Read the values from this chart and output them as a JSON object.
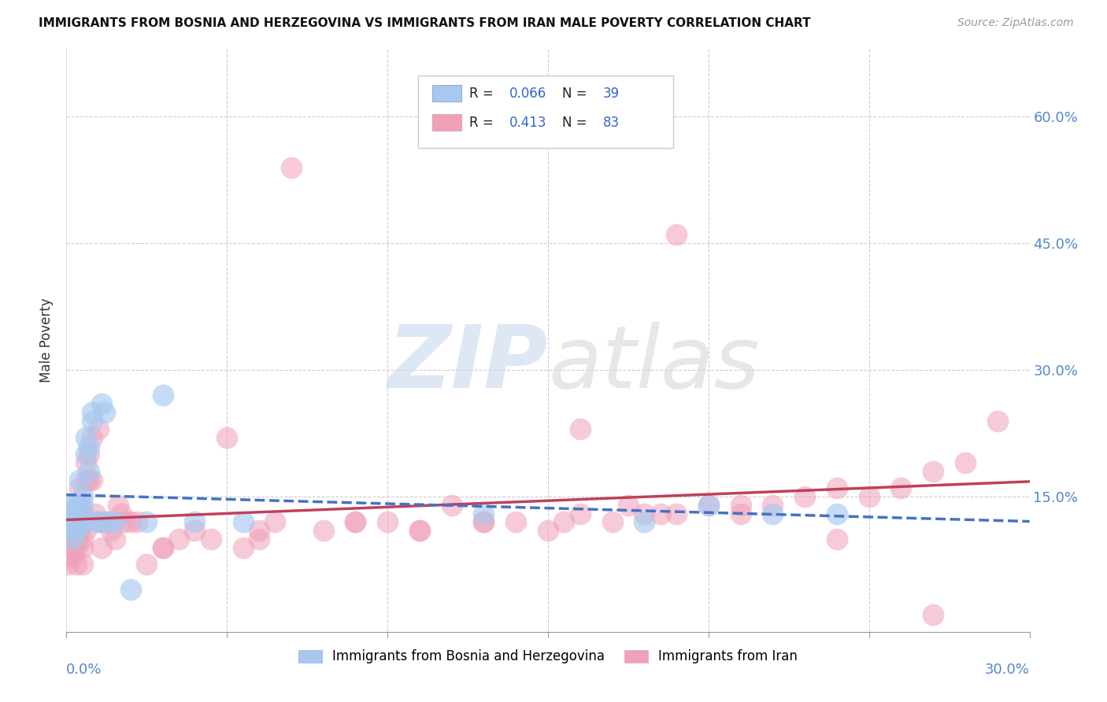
{
  "title": "IMMIGRANTS FROM BOSNIA AND HERZEGOVINA VS IMMIGRANTS FROM IRAN MALE POVERTY CORRELATION CHART",
  "source": "Source: ZipAtlas.com",
  "ylabel": "Male Poverty",
  "right_yticks": [
    0.15,
    0.3,
    0.45,
    0.6
  ],
  "right_yticklabels": [
    "15.0%",
    "30.0%",
    "45.0%",
    "60.0%"
  ],
  "xlim": [
    0.0,
    0.3
  ],
  "ylim": [
    -0.01,
    0.68
  ],
  "color_bosnia": "#a8c8f0",
  "color_iran": "#f0a0b8",
  "line_color_bosnia": "#4472c4",
  "line_color_iran": "#c0405a",
  "R_bosnia": 0.066,
  "N_bosnia": 39,
  "R_iran": 0.413,
  "N_iran": 83,
  "watermark_zip": "ZIP",
  "watermark_atlas": "atlas",
  "background_color": "#ffffff",
  "grid_color": "#cccccc",
  "bosnia_x": [
    0.0005,
    0.001,
    0.001,
    0.002,
    0.002,
    0.002,
    0.002,
    0.003,
    0.003,
    0.003,
    0.003,
    0.004,
    0.004,
    0.004,
    0.005,
    0.005,
    0.005,
    0.006,
    0.006,
    0.007,
    0.007,
    0.008,
    0.008,
    0.009,
    0.01,
    0.011,
    0.012,
    0.013,
    0.015,
    0.02,
    0.025,
    0.03,
    0.04,
    0.055,
    0.13,
    0.18,
    0.2,
    0.22,
    0.24
  ],
  "bosnia_y": [
    0.12,
    0.14,
    0.13,
    0.12,
    0.13,
    0.1,
    0.11,
    0.14,
    0.13,
    0.12,
    0.11,
    0.17,
    0.14,
    0.12,
    0.15,
    0.14,
    0.12,
    0.22,
    0.2,
    0.21,
    0.18,
    0.24,
    0.25,
    0.12,
    0.12,
    0.26,
    0.25,
    0.12,
    0.12,
    0.04,
    0.12,
    0.27,
    0.12,
    0.12,
    0.13,
    0.12,
    0.14,
    0.13,
    0.13
  ],
  "iran_x": [
    0.0005,
    0.001,
    0.001,
    0.002,
    0.002,
    0.002,
    0.002,
    0.003,
    0.003,
    0.003,
    0.003,
    0.004,
    0.004,
    0.004,
    0.005,
    0.005,
    0.005,
    0.005,
    0.006,
    0.006,
    0.006,
    0.007,
    0.007,
    0.008,
    0.008,
    0.009,
    0.01,
    0.01,
    0.011,
    0.012,
    0.013,
    0.014,
    0.015,
    0.016,
    0.017,
    0.018,
    0.02,
    0.022,
    0.025,
    0.03,
    0.035,
    0.04,
    0.045,
    0.05,
    0.055,
    0.06,
    0.065,
    0.07,
    0.08,
    0.09,
    0.1,
    0.11,
    0.12,
    0.13,
    0.14,
    0.15,
    0.155,
    0.16,
    0.17,
    0.175,
    0.18,
    0.185,
    0.19,
    0.2,
    0.21,
    0.22,
    0.23,
    0.24,
    0.25,
    0.26,
    0.27,
    0.28,
    0.29,
    0.03,
    0.06,
    0.09,
    0.11,
    0.13,
    0.16,
    0.19,
    0.21,
    0.24,
    0.27
  ],
  "iran_y": [
    0.07,
    0.1,
    0.08,
    0.11,
    0.09,
    0.1,
    0.08,
    0.12,
    0.1,
    0.09,
    0.07,
    0.16,
    0.14,
    0.11,
    0.13,
    0.1,
    0.09,
    0.07,
    0.19,
    0.17,
    0.11,
    0.2,
    0.17,
    0.22,
    0.17,
    0.13,
    0.12,
    0.23,
    0.09,
    0.12,
    0.12,
    0.11,
    0.1,
    0.14,
    0.13,
    0.12,
    0.12,
    0.12,
    0.07,
    0.09,
    0.1,
    0.11,
    0.1,
    0.22,
    0.09,
    0.11,
    0.12,
    0.54,
    0.11,
    0.12,
    0.12,
    0.11,
    0.14,
    0.12,
    0.12,
    0.11,
    0.12,
    0.13,
    0.12,
    0.14,
    0.13,
    0.13,
    0.13,
    0.14,
    0.14,
    0.14,
    0.15,
    0.16,
    0.15,
    0.16,
    0.18,
    0.19,
    0.24,
    0.09,
    0.1,
    0.12,
    0.11,
    0.12,
    0.23,
    0.46,
    0.13,
    0.1,
    0.01
  ]
}
